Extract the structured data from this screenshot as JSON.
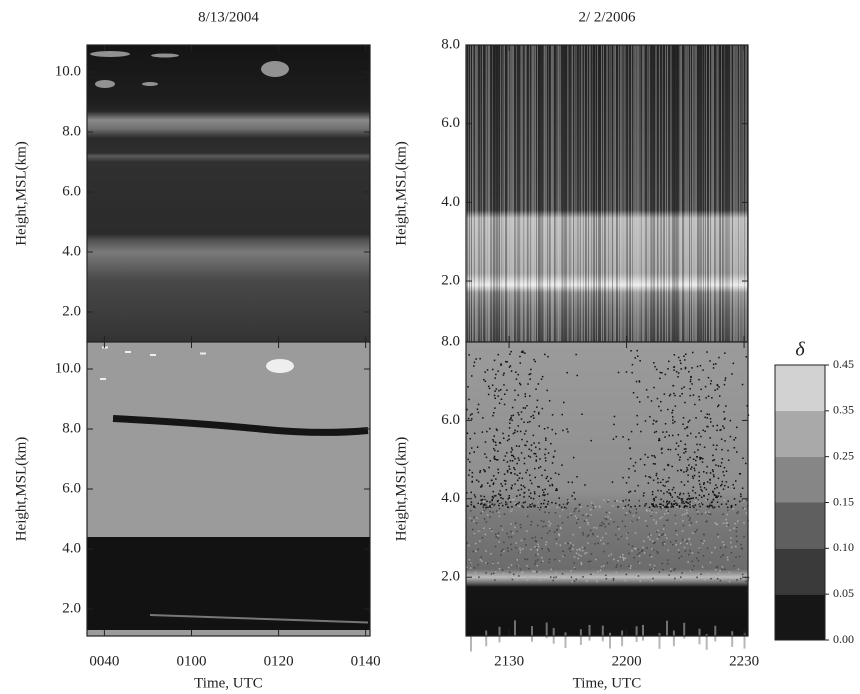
{
  "chart_data": [
    {
      "type": "lidar",
      "title": "8/13/2004",
      "xlabel": "Time, UTC",
      "xlim": [
        36,
        101
      ],
      "xticks": [
        {
          "value": 40,
          "label": "0040"
        },
        {
          "value": 60,
          "label": "0100"
        },
        {
          "value": 80,
          "label": "0120"
        },
        {
          "value": 100,
          "label": "0140"
        }
      ],
      "panels": [
        {
          "ylabel": "Height,MSL(km)",
          "ylim": [
            1.0,
            10.9
          ],
          "yticks": [
            {
              "value": 2,
              "label": "2.0"
            },
            {
              "value": 4,
              "label": "4.0"
            },
            {
              "value": 6,
              "label": "6.0"
            },
            {
              "value": 8,
              "label": "8.0"
            },
            {
              "value": 10,
              "label": "10.0"
            }
          ]
        },
        {
          "ylabel": "Height,MSL(km)",
          "ylim": [
            1.1,
            10.9
          ],
          "yticks": [
            {
              "value": 2,
              "label": "2.0"
            },
            {
              "value": 4,
              "label": "4.0"
            },
            {
              "value": 6,
              "label": "6.0"
            },
            {
              "value": 8,
              "label": "8.0"
            },
            {
              "value": 10,
              "label": "10.0"
            }
          ]
        }
      ]
    },
    {
      "type": "lidar",
      "title": "2/ 2/2006",
      "xlabel": "Time, UTC",
      "xlim": [
        1279,
        1351
      ],
      "xticks": [
        {
          "value": 1290,
          "label": "2130"
        },
        {
          "value": 1320,
          "label": "2200"
        },
        {
          "value": 1350,
          "label": "2230"
        }
      ],
      "panels": [
        {
          "ylabel": "Height,MSL(km)",
          "ylim": [
            0.45,
            8.0
          ],
          "yticks": [
            {
              "value": 2,
              "label": "2.0"
            },
            {
              "value": 4,
              "label": "4.0"
            },
            {
              "value": 6,
              "label": "6.0"
            },
            {
              "value": 8,
              "label": "8.0"
            }
          ]
        },
        {
          "ylabel": "Height,MSL(km)",
          "ylim": [
            0.5,
            8.0
          ],
          "yticks": [
            {
              "value": 2,
              "label": "2.0"
            },
            {
              "value": 4,
              "label": "4.0"
            },
            {
              "value": 6,
              "label": "6.0"
            },
            {
              "value": 8,
              "label": "8.0"
            }
          ]
        }
      ]
    },
    {
      "type": "colorbar",
      "title": "δ",
      "ticks": [
        {
          "value": 0,
          "label": "0.00"
        },
        {
          "value": 0.05,
          "label": "0.05"
        },
        {
          "value": 0.1,
          "label": "0.10"
        },
        {
          "value": 0.15,
          "label": "0.15"
        },
        {
          "value": 0.25,
          "label": "0.25"
        },
        {
          "value": 0.35,
          "label": "0.35"
        },
        {
          "value": 0.45,
          "label": "0.45"
        }
      ],
      "colors": [
        "#161616",
        "#3a3a3a",
        "#5f5f5f",
        "#868686",
        "#a9a9a9",
        "#d2d2d2"
      ]
    }
  ]
}
